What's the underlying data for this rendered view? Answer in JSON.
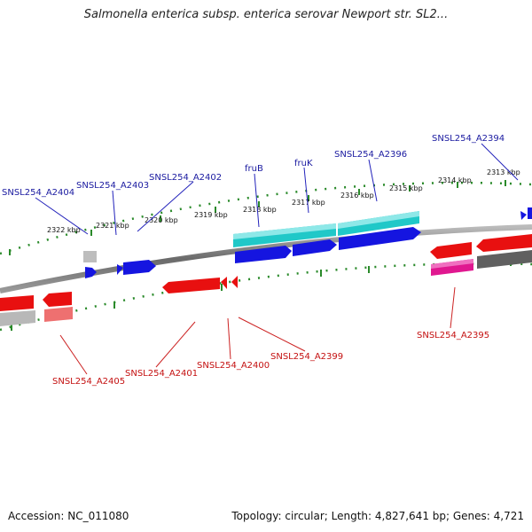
{
  "title": "Salmonella enterica subsp. enterica serovar Newport str. SL2...",
  "footer": {
    "accession": "Accession: NC_011080",
    "topology": "Topology: circular; Length: 4,827,641 bp; Genes: 4,721"
  },
  "tick_labels": [
    "2322 kbp",
    "2321 kbp",
    "2320 kbp",
    "2319 kbp",
    "2318 kbp",
    "2317 kbp",
    "2316 kbp",
    "2315 kbp",
    "2314 kbp",
    "2313 kbp"
  ],
  "top_labels": [
    "SNSL254_A2404",
    "SNSL254_A2403",
    "SNSL254_A2402",
    "fruB",
    "fruK",
    "SNSL254_A2396",
    "SNSL254_A2394"
  ],
  "bottom_labels": [
    "SNSL254_A2405",
    "SNSL254_A2401",
    "SNSL254_A2400",
    "SNSL254_A2399",
    "SNSL254_A2395"
  ],
  "colors": {
    "forward_cds": "#1010e0",
    "reverse_cds": "#e81010",
    "cyan_track": "#20c8c8",
    "magenta_track": "#e01890",
    "grey_track": "#888888",
    "backbone": "#888888",
    "ticks": "#2a8a2a",
    "top_label": "#1a1aa0",
    "bottom_label": "#c41010"
  }
}
